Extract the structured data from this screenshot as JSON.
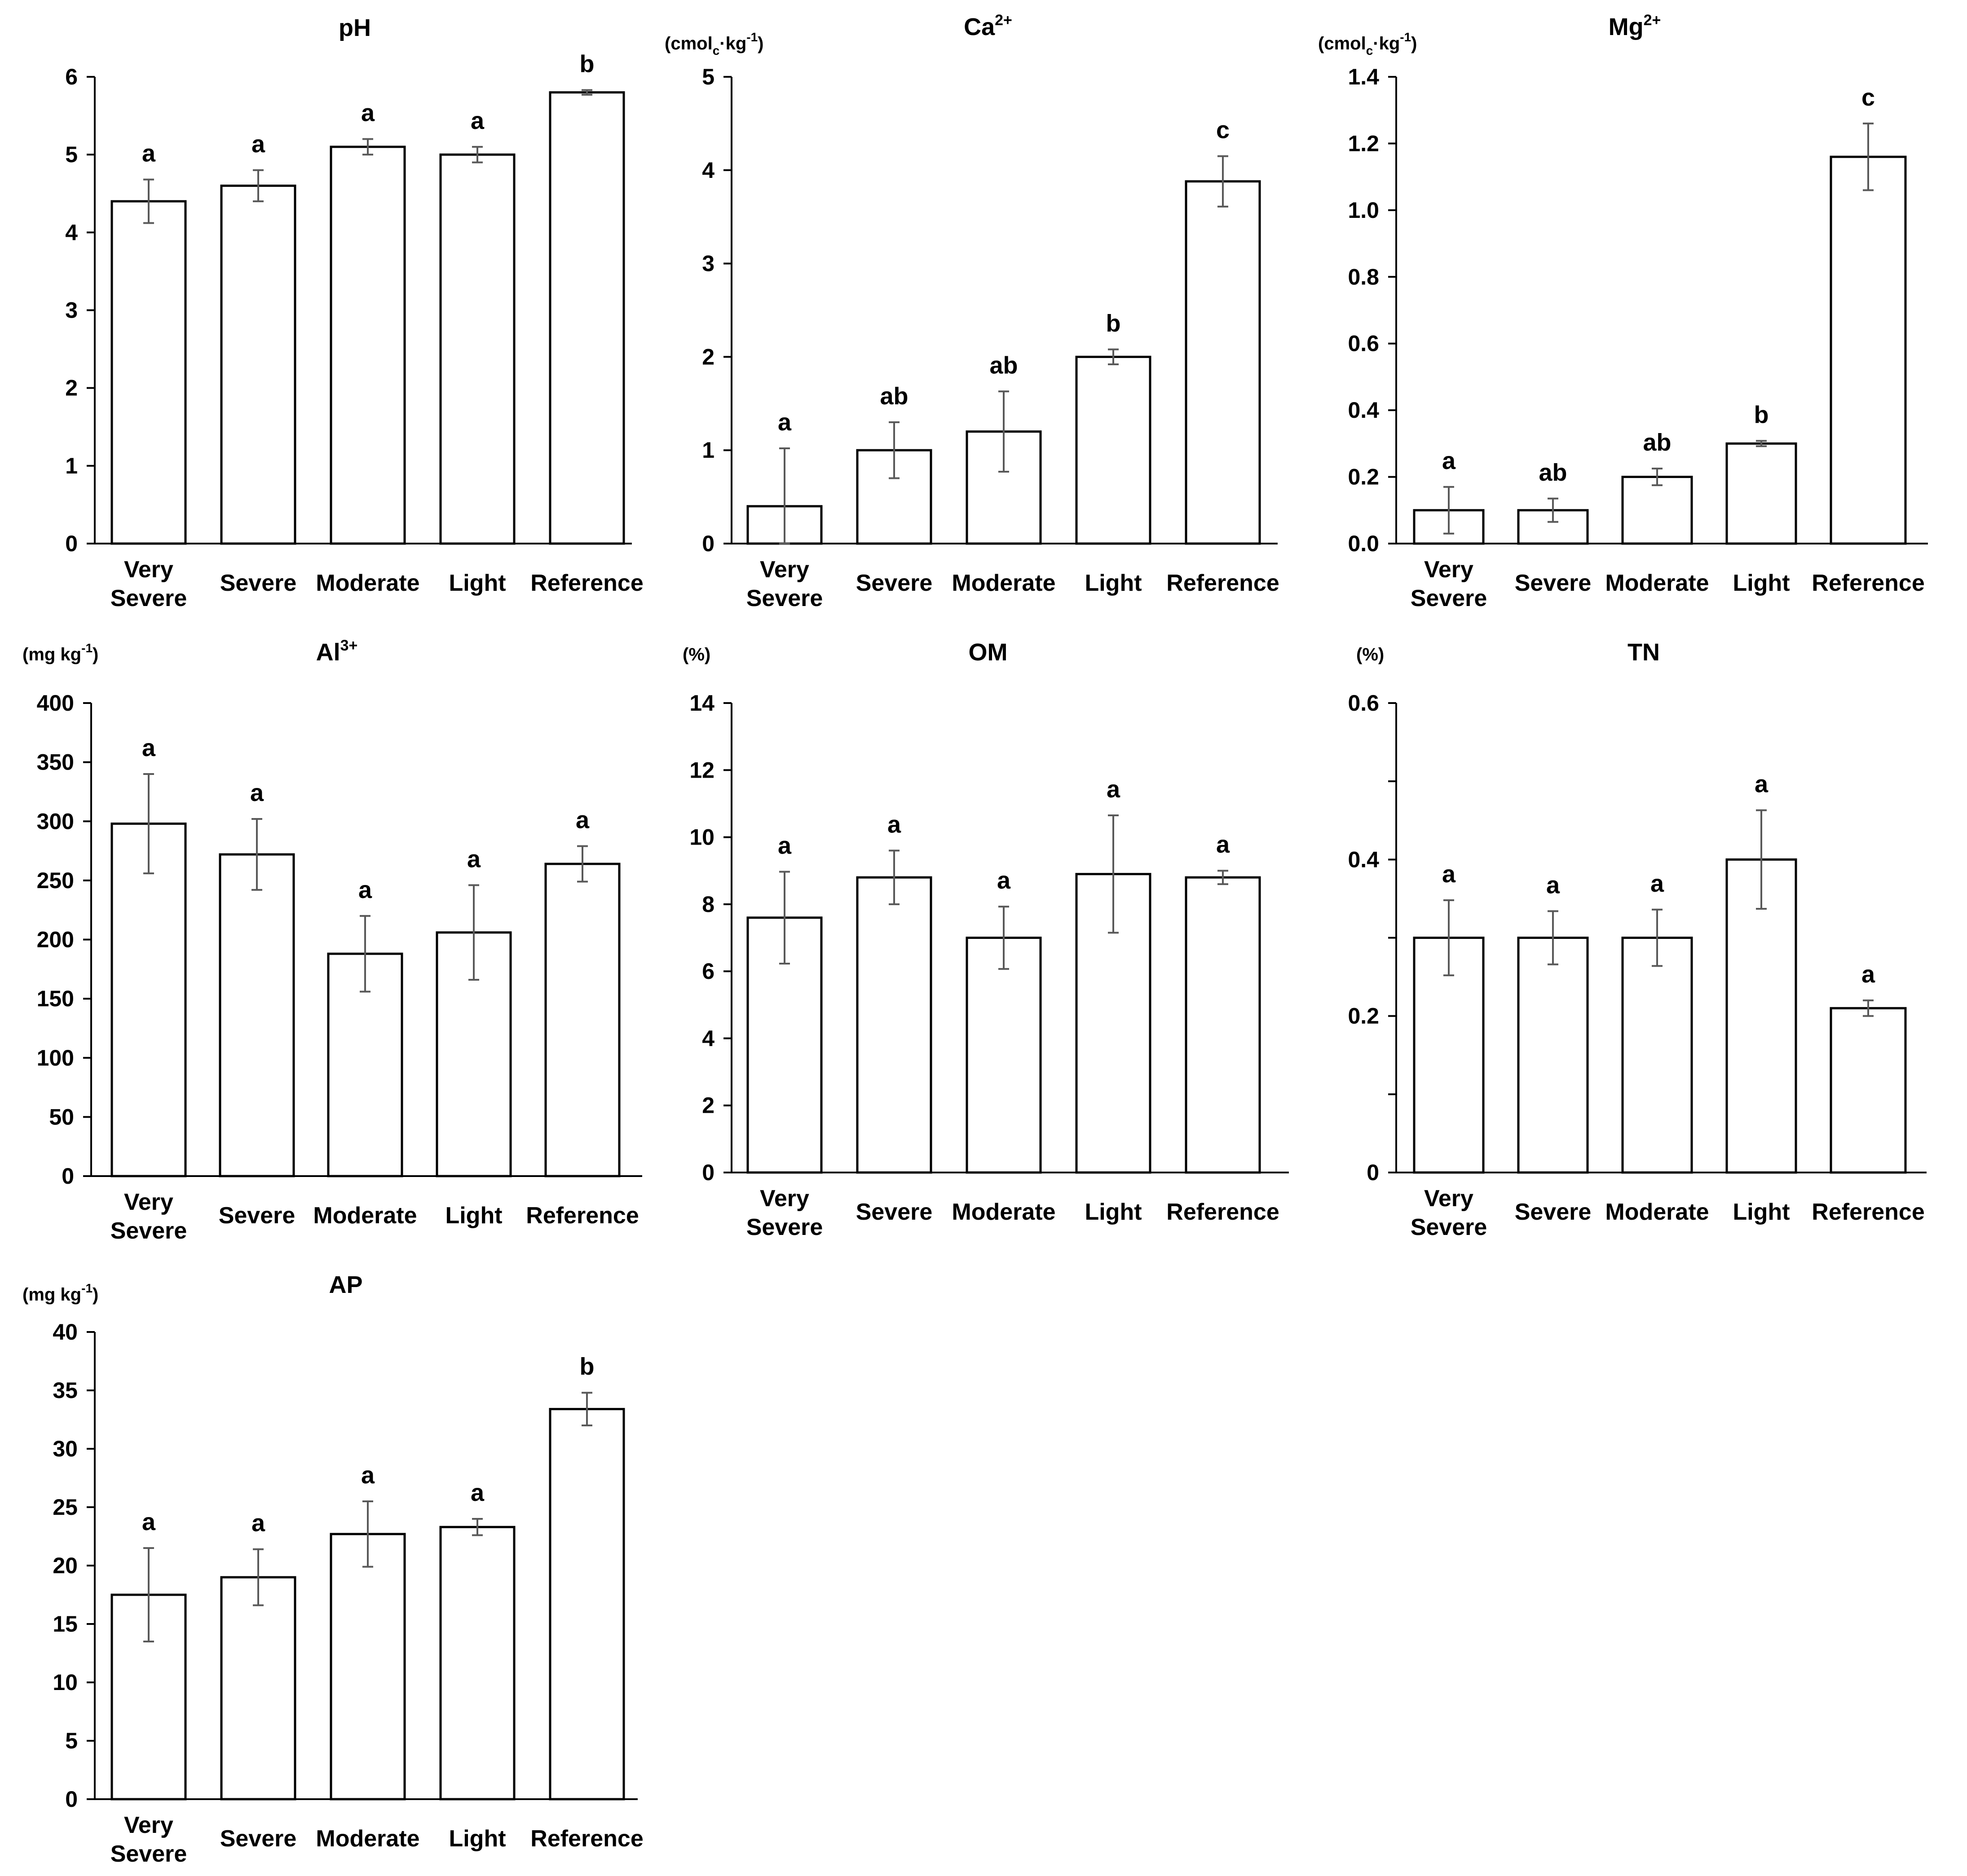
{
  "colors": {
    "bar_fill": "#ffffff",
    "bar_stroke": "#000000",
    "axis": "#000000",
    "error_bar": "#595959",
    "text": "#000000"
  },
  "chart_data": [
    {
      "id": "ph",
      "type": "bar",
      "title": "pH",
      "title_sup": "",
      "unit_label": {
        "pre": "",
        "sub": "",
        "mid": "",
        "sup": "",
        "post": ""
      },
      "categories": [
        [
          "Very",
          "Severe"
        ],
        [
          "Severe"
        ],
        [
          "Moderate"
        ],
        [
          "Light"
        ],
        [
          "Reference"
        ]
      ],
      "values": [
        4.4,
        4.6,
        5.1,
        5.0,
        5.8
      ],
      "errors": [
        0.28,
        0.2,
        0.1,
        0.1,
        0.03
      ],
      "letters": [
        "a",
        "a",
        "a",
        "a",
        "b"
      ],
      "ylim": [
        0,
        6
      ],
      "ticks": [
        "0",
        "1",
        "2",
        "3",
        "4",
        "5",
        "6"
      ]
    },
    {
      "id": "ca",
      "type": "bar",
      "title": "Ca",
      "title_sup": "2+",
      "unit_label": {
        "pre": "(cmol",
        "sub": "c",
        "mid": "·kg",
        "sup": "-1",
        "post": ")"
      },
      "categories": [
        [
          "Very",
          "Severe"
        ],
        [
          "Severe"
        ],
        [
          "Moderate"
        ],
        [
          "Light"
        ],
        [
          "Reference"
        ]
      ],
      "values": [
        0.4,
        1.0,
        1.2,
        2.0,
        3.88
      ],
      "errors": [
        0.62,
        0.3,
        0.43,
        0.08,
        0.27
      ],
      "letters": [
        "a",
        "ab",
        "ab",
        "b",
        "c"
      ],
      "ylim": [
        0,
        5
      ],
      "ticks": [
        "0",
        "1",
        "2",
        "3",
        "4",
        "5"
      ]
    },
    {
      "id": "mg",
      "type": "bar",
      "title": "Mg",
      "title_sup": "2+",
      "unit_label": {
        "pre": "(cmol",
        "sub": "c",
        "mid": "·kg",
        "sup": "-1",
        "post": ")"
      },
      "categories": [
        [
          "Very",
          "Severe"
        ],
        [
          "Severe"
        ],
        [
          "Moderate"
        ],
        [
          "Light"
        ],
        [
          "Reference"
        ]
      ],
      "values": [
        0.1,
        0.1,
        0.2,
        0.3,
        1.16
      ],
      "errors": [
        0.07,
        0.035,
        0.025,
        0.008,
        0.1
      ],
      "letters": [
        "a",
        "ab",
        "ab",
        "b",
        "c"
      ],
      "ylim": [
        0,
        1.4
      ],
      "ticks": [
        "0.0",
        "0.2",
        "0.4",
        "0.6",
        "0.8",
        "1.0",
        "1.2",
        "1.4"
      ]
    },
    {
      "id": "al",
      "type": "bar",
      "title": "Al",
      "title_sup": "3+",
      "unit_label": {
        "pre": "(mg kg",
        "sub": "",
        "mid": "",
        "sup": "-1",
        "post": ")"
      },
      "categories": [
        [
          "Very",
          "Severe"
        ],
        [
          "Severe"
        ],
        [
          "Moderate"
        ],
        [
          "Light"
        ],
        [
          "Reference"
        ]
      ],
      "values": [
        298,
        272,
        188,
        206,
        264
      ],
      "errors": [
        42,
        30,
        32,
        40,
        15
      ],
      "letters": [
        "a",
        "a",
        "a",
        "a",
        "a"
      ],
      "ylim": [
        0,
        400
      ],
      "ticks": [
        "0",
        "50",
        "100",
        "150",
        "200",
        "250",
        "300",
        "350",
        "400"
      ]
    },
    {
      "id": "om",
      "type": "bar",
      "title": "OM",
      "title_sup": "",
      "unit_label": {
        "pre": "(%)",
        "sub": "",
        "mid": "",
        "sup": "",
        "post": ""
      },
      "categories": [
        [
          "Very",
          "Severe"
        ],
        [
          "Severe"
        ],
        [
          "Moderate"
        ],
        [
          "Light"
        ],
        [
          "Reference"
        ]
      ],
      "values": [
        7.6,
        8.8,
        7.0,
        8.9,
        8.8
      ],
      "errors": [
        1.37,
        0.8,
        0.93,
        1.75,
        0.2
      ],
      "letters": [
        "a",
        "a",
        "a",
        "a",
        "a"
      ],
      "ylim": [
        0,
        14
      ],
      "ticks": [
        "0",
        "2",
        "4",
        "6",
        "8",
        "10",
        "12",
        "14"
      ]
    },
    {
      "id": "tn",
      "type": "bar",
      "title": "TN",
      "title_sup": "",
      "unit_label": {
        "pre": "(%)",
        "sub": "",
        "mid": "",
        "sup": "",
        "post": ""
      },
      "categories": [
        [
          "Very",
          "Severe"
        ],
        [
          "Severe"
        ],
        [
          "Moderate"
        ],
        [
          "Light"
        ],
        [
          "Reference"
        ]
      ],
      "values": [
        0.3,
        0.3,
        0.3,
        0.4,
        0.21
      ],
      "errors": [
        0.048,
        0.034,
        0.036,
        0.063,
        0.01
      ],
      "letters": [
        "a",
        "a",
        "a",
        "a",
        "a"
      ],
      "ylim": [
        0,
        0.6
      ],
      "ticks": [
        "0",
        "",
        "0.2",
        "",
        "0.4",
        "",
        "0.6"
      ]
    },
    {
      "id": "ap",
      "type": "bar",
      "title": "AP",
      "title_sup": "",
      "unit_label": {
        "pre": "(mg kg",
        "sub": "",
        "mid": "",
        "sup": "-1",
        "post": ")"
      },
      "categories": [
        [
          "Very",
          "Severe"
        ],
        [
          "Severe"
        ],
        [
          "Moderate"
        ],
        [
          "Light"
        ],
        [
          "Reference"
        ]
      ],
      "values": [
        17.5,
        19.0,
        22.7,
        23.3,
        33.4
      ],
      "errors": [
        4.0,
        2.4,
        2.8,
        0.7,
        1.4
      ],
      "letters": [
        "a",
        "a",
        "a",
        "a",
        "b"
      ],
      "ylim": [
        0,
        40
      ],
      "ticks": [
        "0",
        "5",
        "10",
        "15",
        "20",
        "25",
        "30",
        "35",
        "40"
      ]
    }
  ]
}
